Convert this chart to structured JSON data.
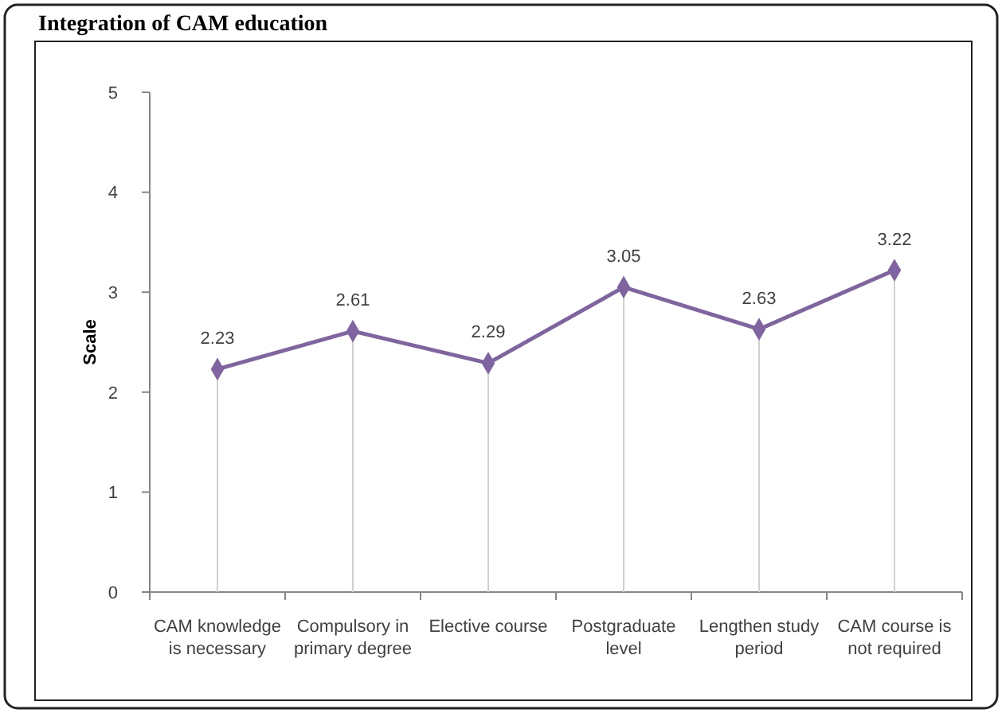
{
  "chart_data": {
    "type": "line",
    "title": "Integration of CAM education",
    "ylabel": "Scale",
    "categories": [
      "CAM knowledge is necessary",
      "Compulsory in primary degree",
      "Elective course",
      "Postgraduate level",
      "Lengthen study period",
      "CAM course is not required"
    ],
    "series": [
      {
        "color": "#8064a2",
        "values": [
          2.23,
          2.61,
          2.29,
          3.05,
          2.63,
          3.22
        ]
      }
    ],
    "ylim": [
      0,
      5
    ],
    "yticks": [
      0,
      1,
      2,
      3,
      4,
      5
    ],
    "data_labels": true,
    "marker": "diamond"
  }
}
